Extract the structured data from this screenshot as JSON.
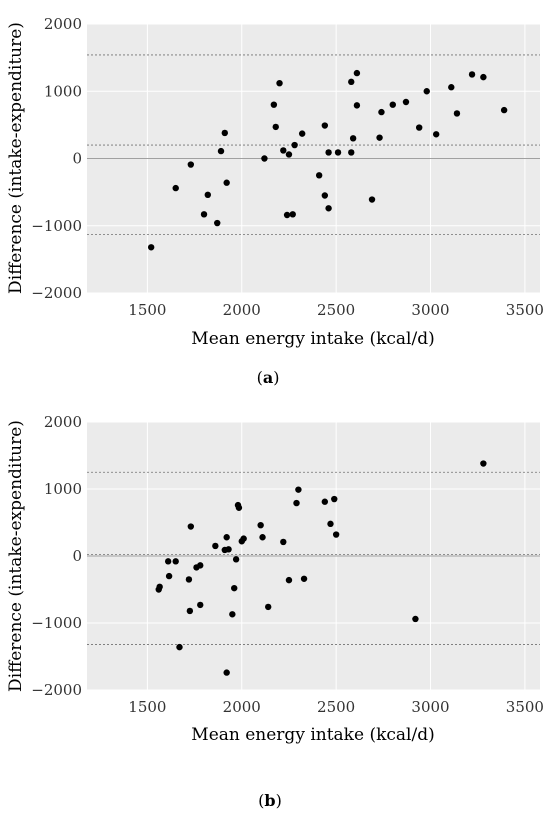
{
  "chart_data": [
    {
      "type": "scatter",
      "panel_label": "a",
      "xlabel": "Mean energy intake (kcal/d)",
      "ylabel": "Difference (intake-expenditure)",
      "xlim": [
        1180,
        3580
      ],
      "ylim": [
        -2000,
        2000
      ],
      "x_ticks": [
        1500,
        2000,
        2500,
        3000,
        3500
      ],
      "y_ticks": [
        -2000,
        -1000,
        0,
        1000,
        2000
      ],
      "zero_line": 0,
      "mean_line": 200,
      "limits_of_agreement": [
        1540,
        -1130
      ],
      "grid": true,
      "points": [
        {
          "x": 1520,
          "y": -1320
        },
        {
          "x": 1650,
          "y": -440
        },
        {
          "x": 1730,
          "y": -90
        },
        {
          "x": 1800,
          "y": -830
        },
        {
          "x": 1820,
          "y": -540
        },
        {
          "x": 1870,
          "y": -960
        },
        {
          "x": 1890,
          "y": 110
        },
        {
          "x": 1910,
          "y": 380
        },
        {
          "x": 1920,
          "y": -360
        },
        {
          "x": 2120,
          "y": 0
        },
        {
          "x": 2170,
          "y": 800
        },
        {
          "x": 2180,
          "y": 470
        },
        {
          "x": 2200,
          "y": 1120
        },
        {
          "x": 2220,
          "y": 120
        },
        {
          "x": 2240,
          "y": -840
        },
        {
          "x": 2250,
          "y": 60
        },
        {
          "x": 2270,
          "y": -830
        },
        {
          "x": 2280,
          "y": 200
        },
        {
          "x": 2320,
          "y": 370
        },
        {
          "x": 2410,
          "y": -250
        },
        {
          "x": 2440,
          "y": 490
        },
        {
          "x": 2440,
          "y": -550
        },
        {
          "x": 2460,
          "y": 90
        },
        {
          "x": 2460,
          "y": -740
        },
        {
          "x": 2510,
          "y": 90
        },
        {
          "x": 2580,
          "y": 1140
        },
        {
          "x": 2580,
          "y": 90
        },
        {
          "x": 2590,
          "y": 300
        },
        {
          "x": 2610,
          "y": 1270
        },
        {
          "x": 2610,
          "y": 790
        },
        {
          "x": 2690,
          "y": -610
        },
        {
          "x": 2730,
          "y": 310
        },
        {
          "x": 2740,
          "y": 690
        },
        {
          "x": 2800,
          "y": 800
        },
        {
          "x": 2870,
          "y": 840
        },
        {
          "x": 2940,
          "y": 460
        },
        {
          "x": 2980,
          "y": 1000
        },
        {
          "x": 3030,
          "y": 360
        },
        {
          "x": 3110,
          "y": 1060
        },
        {
          "x": 3140,
          "y": 670
        },
        {
          "x": 3220,
          "y": 1250
        },
        {
          "x": 3280,
          "y": 1210
        },
        {
          "x": 3390,
          "y": 720
        }
      ]
    },
    {
      "type": "scatter",
      "panel_label": "b",
      "xlabel": "Mean energy intake (kcal/d)",
      "ylabel": "Difference (intake-expenditure)",
      "xlim": [
        1180,
        3580
      ],
      "ylim": [
        -2000,
        2000
      ],
      "x_ticks": [
        1500,
        2000,
        2500,
        3000,
        3500
      ],
      "y_ticks": [
        -2000,
        -1000,
        0,
        1000,
        2000
      ],
      "zero_line": 0,
      "mean_line": 20,
      "limits_of_agreement": [
        1250,
        -1320
      ],
      "grid": true,
      "points": [
        {
          "x": 1560,
          "y": -500
        },
        {
          "x": 1565,
          "y": -460
        },
        {
          "x": 1610,
          "y": -80
        },
        {
          "x": 1615,
          "y": -300
        },
        {
          "x": 1650,
          "y": -80
        },
        {
          "x": 1670,
          "y": -1360
        },
        {
          "x": 1720,
          "y": -350
        },
        {
          "x": 1725,
          "y": -820
        },
        {
          "x": 1730,
          "y": 440
        },
        {
          "x": 1760,
          "y": -170
        },
        {
          "x": 1780,
          "y": -140
        },
        {
          "x": 1780,
          "y": -730
        },
        {
          "x": 1860,
          "y": 150
        },
        {
          "x": 1910,
          "y": 90
        },
        {
          "x": 1920,
          "y": 280
        },
        {
          "x": 1920,
          "y": -1740
        },
        {
          "x": 1930,
          "y": 100
        },
        {
          "x": 1950,
          "y": -870
        },
        {
          "x": 1960,
          "y": -480
        },
        {
          "x": 1970,
          "y": -50
        },
        {
          "x": 1980,
          "y": 760
        },
        {
          "x": 1985,
          "y": 720
        },
        {
          "x": 2000,
          "y": 220
        },
        {
          "x": 2010,
          "y": 260
        },
        {
          "x": 2100,
          "y": 460
        },
        {
          "x": 2110,
          "y": 280
        },
        {
          "x": 2140,
          "y": -760
        },
        {
          "x": 2220,
          "y": 210
        },
        {
          "x": 2250,
          "y": -360
        },
        {
          "x": 2290,
          "y": 790
        },
        {
          "x": 2300,
          "y": 990
        },
        {
          "x": 2330,
          "y": -340
        },
        {
          "x": 2440,
          "y": 810
        },
        {
          "x": 2470,
          "y": 480
        },
        {
          "x": 2490,
          "y": 850
        },
        {
          "x": 2500,
          "y": 320
        },
        {
          "x": 2920,
          "y": -940
        },
        {
          "x": 3280,
          "y": 1380
        }
      ]
    }
  ]
}
